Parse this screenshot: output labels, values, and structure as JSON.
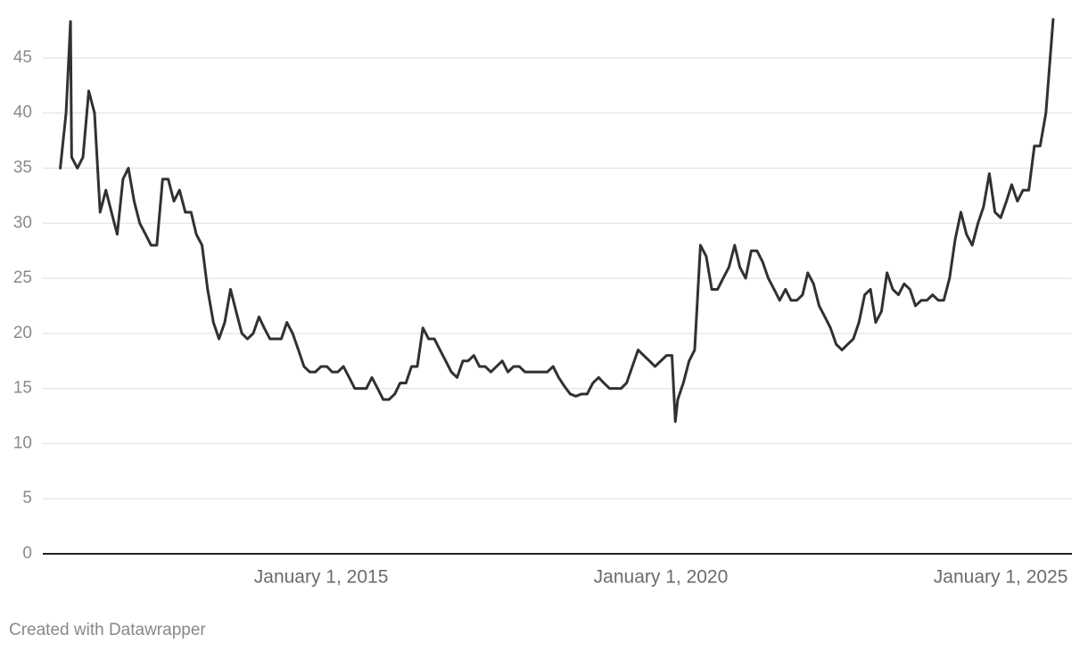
{
  "chart_data": {
    "type": "line",
    "color": "#333034",
    "grid": true,
    "source": "Created with Datawrapper",
    "xlim": [
      "2010-11-27",
      "2026-01-19"
    ],
    "xticks": [
      {
        "value": "2015-01-01",
        "label": "January 1, 2015"
      },
      {
        "value": "2020-01-01",
        "label": "January 1, 2020"
      },
      {
        "value": "2025-01-01",
        "label": "January 1, 2025"
      }
    ],
    "ylim": [
      0,
      48.5
    ],
    "yticks": [
      0,
      5,
      10,
      15,
      20,
      25,
      30,
      35,
      40,
      45
    ],
    "x": [
      "2011-03-01",
      "2011-04-01",
      "2011-04-25",
      "2011-05-01",
      "2011-06-01",
      "2011-07-01",
      "2011-08-01",
      "2011-09-01",
      "2011-10-01",
      "2011-11-01",
      "2011-12-01",
      "2012-01-01",
      "2012-02-01",
      "2012-03-01",
      "2012-04-01",
      "2012-05-01",
      "2012-06-01",
      "2012-07-01",
      "2012-08-01",
      "2012-09-01",
      "2012-10-01",
      "2012-11-01",
      "2012-12-01",
      "2013-01-01",
      "2013-02-01",
      "2013-03-01",
      "2013-04-01",
      "2013-05-01",
      "2013-06-01",
      "2013-07-01",
      "2013-08-01",
      "2013-09-01",
      "2013-10-01",
      "2013-11-01",
      "2013-12-01",
      "2014-01-01",
      "2014-02-01",
      "2014-03-01",
      "2014-04-01",
      "2014-05-01",
      "2014-06-01",
      "2014-07-01",
      "2014-08-01",
      "2014-09-01",
      "2014-10-01",
      "2014-11-01",
      "2014-12-01",
      "2015-01-01",
      "2015-02-01",
      "2015-03-01",
      "2015-04-01",
      "2015-05-01",
      "2015-06-01",
      "2015-07-01",
      "2015-08-01",
      "2015-09-01",
      "2015-10-01",
      "2015-11-01",
      "2015-12-01",
      "2016-01-01",
      "2016-02-01",
      "2016-03-01",
      "2016-04-01",
      "2016-05-01",
      "2016-06-01",
      "2016-07-01",
      "2016-08-01",
      "2016-09-01",
      "2016-10-01",
      "2016-11-01",
      "2016-12-01",
      "2017-01-01",
      "2017-02-01",
      "2017-03-01",
      "2017-04-01",
      "2017-05-01",
      "2017-06-01",
      "2017-07-01",
      "2017-08-01",
      "2017-09-01",
      "2017-10-01",
      "2017-11-01",
      "2017-12-01",
      "2018-01-01",
      "2018-02-01",
      "2018-03-01",
      "2018-04-01",
      "2018-05-01",
      "2018-06-01",
      "2018-07-01",
      "2018-08-01",
      "2018-09-01",
      "2018-10-01",
      "2018-11-01",
      "2018-12-01",
      "2019-01-01",
      "2019-02-01",
      "2019-03-01",
      "2019-04-01",
      "2019-05-01",
      "2019-06-01",
      "2019-07-01",
      "2019-08-01",
      "2019-09-01",
      "2019-10-01",
      "2019-11-01",
      "2019-12-01",
      "2020-01-01",
      "2020-02-01",
      "2020-03-01",
      "2020-03-19",
      "2020-04-01",
      "2020-05-01",
      "2020-06-01",
      "2020-07-01",
      "2020-08-01",
      "2020-09-01",
      "2020-10-01",
      "2020-11-01",
      "2020-12-01",
      "2021-01-01",
      "2021-02-01",
      "2021-03-01",
      "2021-04-01",
      "2021-05-01",
      "2021-06-01",
      "2021-07-01",
      "2021-08-01",
      "2021-09-01",
      "2021-10-01",
      "2021-11-01",
      "2021-12-01",
      "2022-01-01",
      "2022-02-01",
      "2022-03-01",
      "2022-04-01",
      "2022-05-01",
      "2022-06-01",
      "2022-07-01",
      "2022-08-01",
      "2022-09-01",
      "2022-10-01",
      "2022-11-01",
      "2022-12-01",
      "2023-01-01",
      "2023-02-01",
      "2023-03-01",
      "2023-04-01",
      "2023-05-01",
      "2023-06-01",
      "2023-07-01",
      "2023-08-01",
      "2023-09-01",
      "2023-10-01",
      "2023-11-01",
      "2023-12-01",
      "2024-01-01",
      "2024-02-01",
      "2024-03-01",
      "2024-04-01",
      "2024-05-01",
      "2024-06-01",
      "2024-07-01",
      "2024-08-01",
      "2024-09-01",
      "2024-10-01",
      "2024-11-01",
      "2024-12-01",
      "2025-01-01",
      "2025-02-01",
      "2025-03-01",
      "2025-04-01",
      "2025-05-01",
      "2025-06-01",
      "2025-07-01",
      "2025-08-01",
      "2025-09-01",
      "2025-10-10"
    ],
    "values": [
      35,
      40,
      48.3,
      36,
      35,
      36,
      42,
      40,
      31,
      33,
      31,
      29,
      34,
      35,
      32,
      30,
      29,
      28,
      28,
      34,
      34,
      32,
      33,
      31,
      31,
      29,
      28,
      24,
      21,
      19.5,
      21,
      24,
      22,
      20,
      19.5,
      20,
      21.5,
      20.5,
      19.5,
      19.5,
      19.5,
      21,
      20,
      18.5,
      17,
      16.5,
      16.5,
      17,
      17,
      16.5,
      16.5,
      17,
      16,
      15,
      15,
      15,
      16,
      15,
      14,
      14,
      14.5,
      15.5,
      15.5,
      17,
      17,
      20.5,
      19.5,
      19.5,
      18.5,
      17.5,
      16.5,
      16,
      17.5,
      17.5,
      18,
      17,
      17,
      16.5,
      17,
      17.5,
      16.5,
      17,
      17,
      16.5,
      16.5,
      16.5,
      16.5,
      16.5,
      17,
      16,
      15.2,
      14.5,
      14.3,
      14.5,
      14.5,
      15.5,
      16,
      15.5,
      15,
      15,
      15,
      15.5,
      17,
      18.5,
      18,
      17.5,
      17,
      17.5,
      18,
      18,
      12,
      14,
      15.5,
      17.5,
      18.5,
      28,
      27,
      24,
      24,
      25,
      26,
      28,
      26,
      25,
      27.5,
      27.5,
      26.5,
      25,
      24,
      23,
      24,
      23,
      23,
      23.5,
      25.5,
      24.5,
      22.5,
      21.5,
      20.5,
      19,
      18.5,
      19,
      19.5,
      21,
      23.5,
      24,
      21,
      22,
      25.5,
      24,
      23.5,
      24.5,
      24,
      22.5,
      23,
      23,
      23.5,
      23,
      23,
      25,
      28.5,
      31,
      29,
      28,
      30,
      31.5,
      34.5,
      31,
      30.5,
      32,
      33.5,
      32,
      33,
      33,
      37,
      37,
      40,
      48.5
    ]
  }
}
